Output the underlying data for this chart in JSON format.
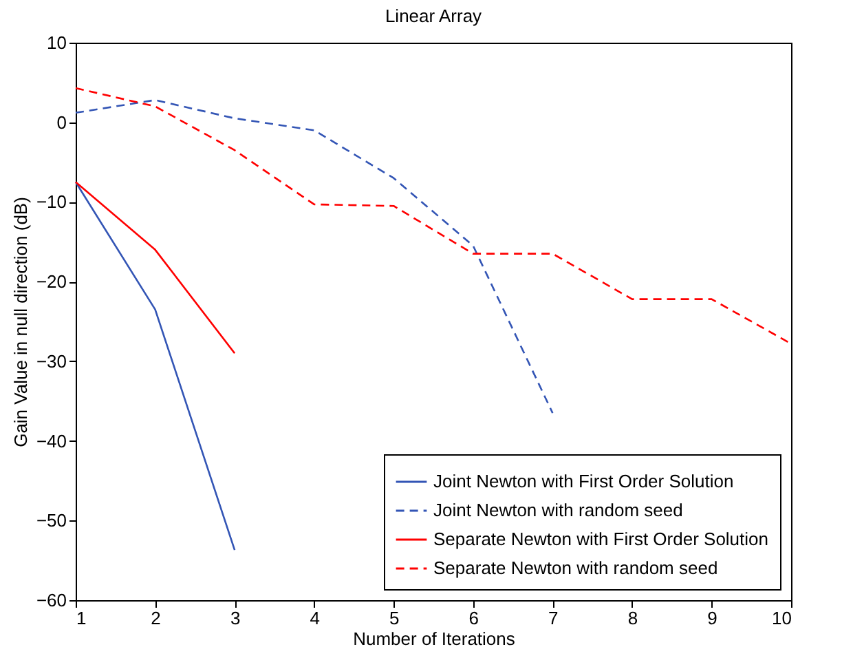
{
  "chart_data": {
    "type": "line",
    "title": "Linear Array",
    "xlabel": "Number of Iterations",
    "ylabel": "Gain Value in null direction (dB)",
    "xlim": [
      1,
      10
    ],
    "xticks": [
      1,
      2,
      3,
      4,
      5,
      6,
      7,
      8,
      9,
      10
    ],
    "ylim": [
      -60,
      10
    ],
    "yticks": [
      -60,
      -50,
      -40,
      -30,
      -20,
      -10,
      0,
      10
    ],
    "grid": false,
    "legend": "bottom right",
    "marker": "none",
    "series": [
      {
        "name": "Joint Newton with First Order Solution",
        "color": "#3355b5",
        "line_style": "solid",
        "x": [
          1,
          2,
          3
        ],
        "values": [
          -7.5,
          -23.5,
          -53.7
        ]
      },
      {
        "name": "Joint Newton with random seed",
        "color": "#3355b5",
        "line_style": "dashed",
        "x": [
          1,
          2,
          3,
          4,
          5,
          6,
          7
        ],
        "values": [
          1.2,
          2.8,
          0.5,
          -1,
          -7,
          -15.5,
          -36.5
        ]
      },
      {
        "name": "Separate Newton with First Order Solution",
        "color": "#ff0000",
        "line_style": "solid",
        "x": [
          1,
          2,
          3
        ],
        "values": [
          -7.5,
          -16,
          -29
        ]
      },
      {
        "name": "Separate Newton with random seed",
        "color": "#ff0000",
        "line_style": "dashed",
        "x": [
          1,
          2,
          3,
          4,
          5,
          6,
          7,
          8,
          9,
          10
        ],
        "values": [
          4.3,
          2,
          -3.5,
          -10.3,
          -10.5,
          -16.5,
          -16.5,
          -22.2,
          -22.2,
          -27.8
        ]
      }
    ]
  }
}
